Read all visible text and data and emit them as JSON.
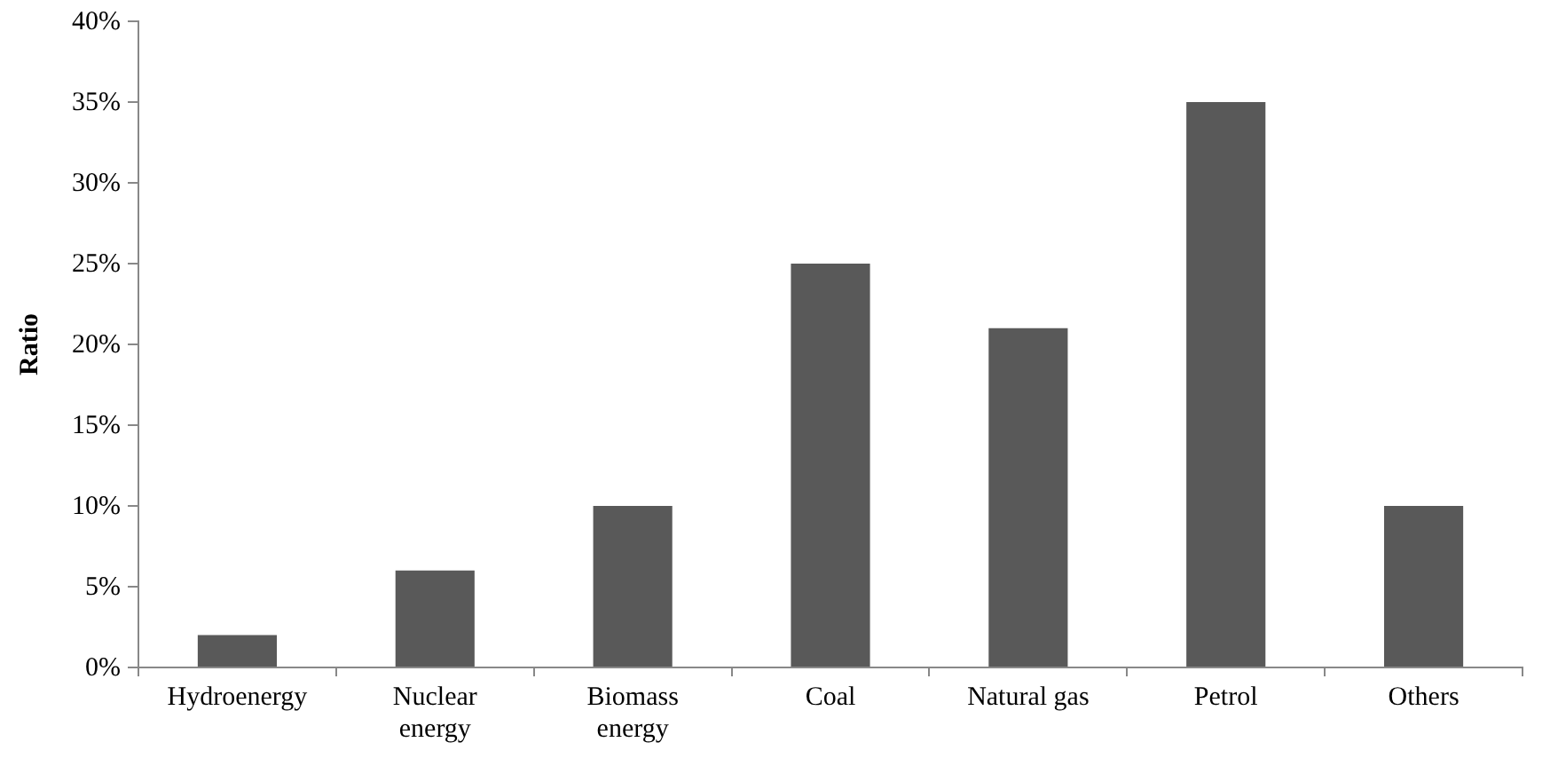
{
  "chart_data": {
    "type": "bar",
    "ylabel": "Ratio",
    "categories": [
      "Hydroenergy",
      "Nuclear energy",
      "Biomass energy",
      "Coal",
      "Natural gas",
      "Petrol",
      "Others"
    ],
    "values": [
      2,
      6,
      10,
      25,
      21,
      35,
      10
    ],
    "color": "#595959",
    "ylim": [
      0,
      40
    ],
    "yticks": [
      {
        "value": 0,
        "label": "0%"
      },
      {
        "value": 5,
        "label": "5%"
      },
      {
        "value": 10,
        "label": "10%"
      },
      {
        "value": 15,
        "label": "15%"
      },
      {
        "value": 20,
        "label": "20%"
      },
      {
        "value": 25,
        "label": "25%"
      },
      {
        "value": 30,
        "label": "30%"
      },
      {
        "value": 35,
        "label": "35%"
      },
      {
        "value": 40,
        "label": "40%"
      }
    ],
    "grid": false,
    "legend": false
  }
}
